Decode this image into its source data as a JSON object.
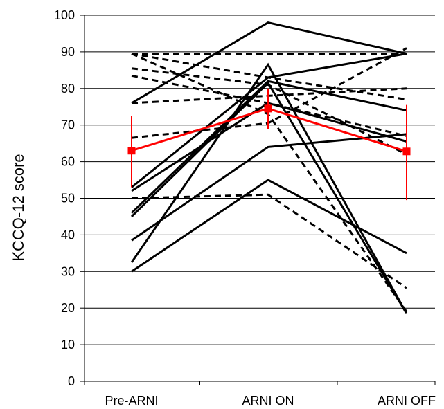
{
  "chart_data": {
    "type": "line",
    "title": "",
    "xlabel": "",
    "ylabel": "KCCQ-12 score",
    "categories": [
      "Pre-ARNI",
      "ARNI ON",
      "ARNI OFF"
    ],
    "ylim": [
      0,
      100
    ],
    "yticks": [
      0,
      10,
      20,
      30,
      40,
      50,
      60,
      70,
      80,
      90,
      100
    ],
    "grid": "horizontal",
    "legend": "none",
    "colors": {
      "individual": "#000000",
      "mean": "#ff0000",
      "grid": "#000000"
    },
    "series": [
      {
        "style": "solid",
        "values": [
          76,
          98,
          89.5
        ]
      },
      {
        "style": "solid",
        "values": [
          53,
          83,
          89.5
        ]
      },
      {
        "style": "solid",
        "values": [
          52,
          76,
          65.5
        ]
      },
      {
        "style": "solid",
        "values": [
          46,
          82,
          74
        ]
      },
      {
        "style": "solid",
        "values": [
          45,
          81.5,
          18.5
        ]
      },
      {
        "style": "solid",
        "values": [
          32.5,
          86.5,
          18.5
        ]
      },
      {
        "style": "solid",
        "values": [
          38.5,
          64,
          67.5
        ]
      },
      {
        "style": "solid",
        "values": [
          30,
          55,
          35
        ]
      },
      {
        "style": "dashed",
        "values": [
          89.5,
          89.5,
          89.5
        ]
      },
      {
        "style": "dashed",
        "values": [
          89.5,
          83,
          77
        ]
      },
      {
        "style": "dashed",
        "values": [
          85.5,
          81,
          62
        ]
      },
      {
        "style": "dashed",
        "values": [
          83.5,
          76,
          67
        ]
      },
      {
        "style": "dashed",
        "values": [
          76,
          78,
          80
        ]
      },
      {
        "style": "dashed",
        "values": [
          66.5,
          70.5,
          91
        ]
      },
      {
        "style": "dashed",
        "values": [
          50,
          51,
          25.5
        ]
      },
      {
        "style": "dashed",
        "values": [
          89.5,
          73,
          19
        ]
      }
    ],
    "mean": {
      "values": [
        63,
        74.5,
        62.8
      ],
      "error_low": [
        53,
        69,
        49.5
      ],
      "error_high": [
        72.5,
        80,
        75.5
      ]
    }
  }
}
